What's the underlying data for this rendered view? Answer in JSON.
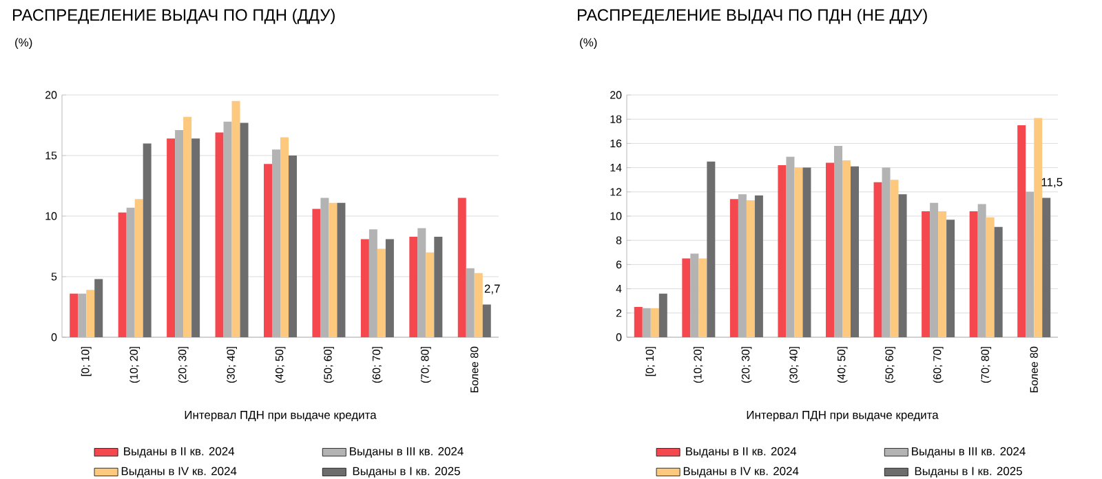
{
  "chart_data": [
    {
      "type": "bar",
      "title": "РАСПРЕДЕЛЕНИЕ ВЫДАЧ ПО ПДН (ДДУ)",
      "ylabel": "(%)",
      "xlabel": "Интервал ПДН при выдаче кредита",
      "categories": [
        "[0; 10]",
        "(10; 20]",
        "(20; 30]",
        "(30; 40]",
        "(40; 50]",
        "(50; 60]",
        "(60; 70]",
        "(70; 80]",
        "Более 80"
      ],
      "series": [
        {
          "name": "Выданы в II кв. 2024",
          "color": "#f4474e",
          "values": [
            3.6,
            10.3,
            16.4,
            16.9,
            14.3,
            10.6,
            8.1,
            8.3,
            11.5
          ]
        },
        {
          "name": "Выданы в III кв. 2024",
          "color": "#b3b3b3",
          "values": [
            3.6,
            10.7,
            17.1,
            17.8,
            15.5,
            11.5,
            8.9,
            9.0,
            5.7
          ]
        },
        {
          "name": "Выданы в IV кв. 2024",
          "color": "#fdc97f",
          "values": [
            3.9,
            11.4,
            18.2,
            19.5,
            16.5,
            11.1,
            7.3,
            7.0,
            5.3
          ]
        },
        {
          "name": "Выданы в I кв. 2025",
          "color": "#6d6d6d",
          "values": [
            4.8,
            16.0,
            16.4,
            17.7,
            15.0,
            11.1,
            8.1,
            8.3,
            2.7
          ],
          "value_labels": [
            null,
            null,
            null,
            null,
            null,
            null,
            null,
            null,
            "2,7"
          ]
        }
      ],
      "ylim": [
        0,
        20
      ],
      "yticks": [
        0,
        5,
        10,
        15,
        20
      ],
      "grid": "y",
      "legend": "bottom"
    },
    {
      "type": "bar",
      "title": "РАСПРЕДЕЛЕНИЕ ВЫДАЧ ПО ПДН (НЕ ДДУ)",
      "ylabel": "(%)",
      "xlabel": "Интервал ПДН при выдаче кредита",
      "categories": [
        "[0; 10]",
        "(10; 20]",
        "(20; 30]",
        "(30; 40]",
        "(40; 50]",
        "(50; 60]",
        "(60; 70]",
        "(70; 80]",
        "Более 80"
      ],
      "series": [
        {
          "name": "Выданы в II кв. 2024",
          "color": "#f4474e",
          "values": [
            2.5,
            6.5,
            11.4,
            14.2,
            14.4,
            12.8,
            10.4,
            10.4,
            17.5
          ]
        },
        {
          "name": "Выданы в III кв. 2024",
          "color": "#b3b3b3",
          "values": [
            2.4,
            6.9,
            11.8,
            14.9,
            15.8,
            14.0,
            11.1,
            11.0,
            12.0
          ]
        },
        {
          "name": "Выданы в IV кв. 2024",
          "color": "#fdc97f",
          "values": [
            2.4,
            6.5,
            11.3,
            14.0,
            14.6,
            13.0,
            10.4,
            9.9,
            18.1
          ]
        },
        {
          "name": "Выданы в I кв. 2025",
          "color": "#6d6d6d",
          "values": [
            3.6,
            14.5,
            11.7,
            14.0,
            14.1,
            11.8,
            9.7,
            9.1,
            11.5
          ],
          "value_labels": [
            null,
            null,
            null,
            null,
            null,
            null,
            null,
            null,
            "11,5"
          ]
        }
      ],
      "ylim": [
        0,
        20
      ],
      "yticks": [
        0,
        2,
        4,
        6,
        8,
        10,
        12,
        14,
        16,
        18,
        20
      ],
      "grid": "y",
      "legend": "bottom"
    }
  ]
}
